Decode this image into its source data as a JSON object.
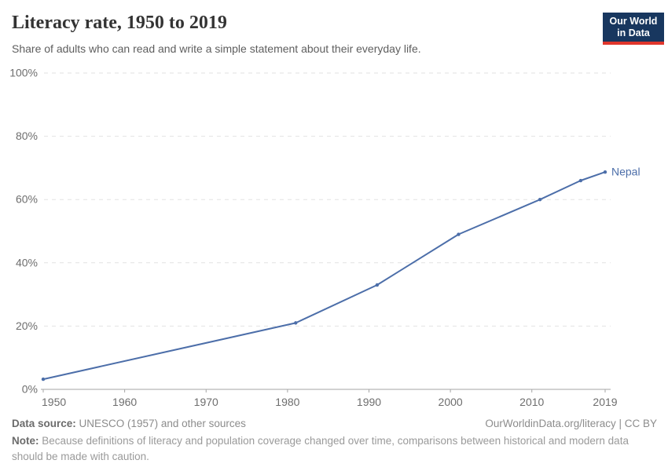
{
  "header": {
    "title": "Literacy rate, 1950 to 2019",
    "subtitle": "Share of adults who can read and write a simple statement about their everyday life.",
    "logo_line1": "Our World",
    "logo_line2": "in Data"
  },
  "chart_data": {
    "type": "line",
    "title": "Literacy rate, 1950 to 2019",
    "xlabel": "",
    "ylabel": "",
    "xlim": [
      1950,
      2019
    ],
    "ylim": [
      0,
      100
    ],
    "grid": true,
    "legend_position": "end-of-line",
    "xticks": [
      1950,
      1960,
      1970,
      1980,
      1990,
      2000,
      2010,
      2019
    ],
    "yticks": [
      {
        "value": 0,
        "label": "0%"
      },
      {
        "value": 20,
        "label": "20%"
      },
      {
        "value": 40,
        "label": "40%"
      },
      {
        "value": 60,
        "label": "60%"
      },
      {
        "value": 80,
        "label": "80%"
      },
      {
        "value": 100,
        "label": "100%"
      }
    ],
    "series": [
      {
        "name": "Nepal",
        "color": "#4C6EA9",
        "points": [
          [
            1950,
            3.2
          ],
          [
            1981,
            21
          ],
          [
            1991,
            33
          ],
          [
            2001,
            49
          ],
          [
            2011,
            60
          ],
          [
            2016,
            66
          ],
          [
            2019,
            68.7
          ]
        ]
      }
    ]
  },
  "footer": {
    "source_label": "Data source:",
    "source_text": " UNESCO (1957) and other sources",
    "license": "OurWorldinData.org/literacy | CC BY",
    "note_label": "Note:",
    "note_text": " Because definitions of literacy and population coverage changed over time, comparisons between historical and modern data should be made with caution."
  },
  "colors": {
    "line": "#4C6EA9",
    "logo_bg": "#18375f",
    "logo_stripe": "#e0362c",
    "grid": "#e2e2e2",
    "axis": "#a5a5a5",
    "tick_text": "#6e6e6e"
  }
}
